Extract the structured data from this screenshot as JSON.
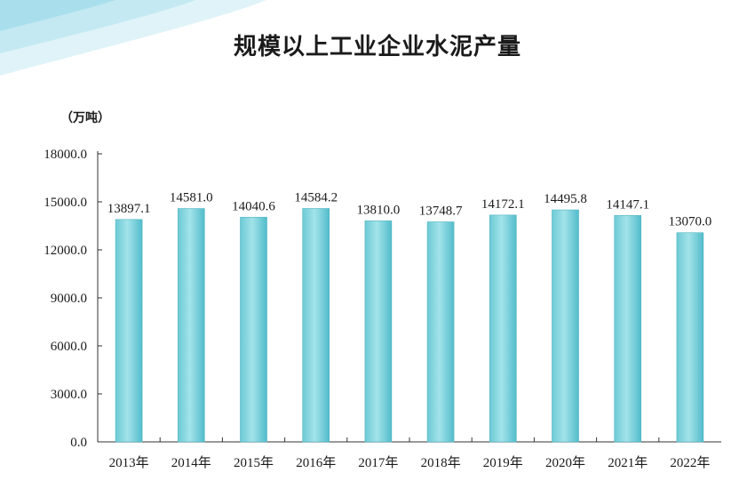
{
  "chart_data": {
    "type": "bar",
    "title": "规模以上工业企业水泥产量",
    "unit": "（万吨）",
    "categories": [
      "2013年",
      "2014年",
      "2015年",
      "2016年",
      "2017年",
      "2018年",
      "2019年",
      "2020年",
      "2021年",
      "2022年"
    ],
    "values": [
      13897.1,
      14581.0,
      14040.6,
      14584.2,
      13810.0,
      13748.7,
      14172.1,
      14495.8,
      14147.1,
      13070.0
    ],
    "value_labels": [
      "13897.1",
      "14581.0",
      "14040.6",
      "14584.2",
      "13810.0",
      "13748.7",
      "14172.1",
      "14495.8",
      "14147.1",
      "13070.0"
    ],
    "yticks": [
      "0.0",
      "3000.0",
      "6000.0",
      "9000.0",
      "12000.0",
      "15000.0",
      "18000.0"
    ],
    "ylim": [
      0,
      18000
    ],
    "grid": false,
    "bar_color": "#5cc3cf",
    "accent_color": "#7fd3e0"
  }
}
